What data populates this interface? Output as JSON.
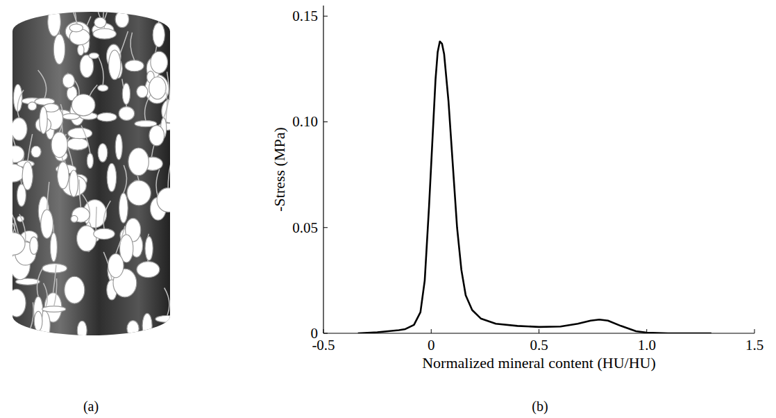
{
  "figure": {
    "panel_labels": [
      "(a)",
      "(b)"
    ]
  },
  "chart_data": {
    "type": "line",
    "xlabel": "Normalized mineral content (HU/HU)",
    "ylabel": "-Stress (MPa)",
    "x": [
      -0.34,
      -0.25,
      -0.2,
      -0.15,
      -0.12,
      -0.08,
      -0.05,
      -0.03,
      -0.01,
      0.01,
      0.02,
      0.03,
      0.04,
      0.05,
      0.06,
      0.08,
      0.1,
      0.12,
      0.14,
      0.16,
      0.19,
      0.23,
      0.3,
      0.4,
      0.5,
      0.6,
      0.68,
      0.74,
      0.78,
      0.82,
      0.88,
      0.95,
      1.0,
      1.1,
      1.2,
      1.3
    ],
    "values": [
      0,
      0.0005,
      0.001,
      0.0015,
      0.002,
      0.004,
      0.01,
      0.025,
      0.06,
      0.1,
      0.12,
      0.133,
      0.138,
      0.137,
      0.132,
      0.11,
      0.08,
      0.05,
      0.03,
      0.018,
      0.011,
      0.007,
      0.0045,
      0.0035,
      0.003,
      0.0032,
      0.0045,
      0.006,
      0.0065,
      0.006,
      0.0035,
      0.001,
      0.0003,
      0,
      0,
      0
    ],
    "color": "#000000",
    "xlim": [
      -0.5,
      1.5
    ],
    "xticks": [
      -0.5,
      0,
      0.5,
      {
        "value": 1,
        "label": "1.0"
      },
      1.5
    ],
    "ylim": [
      0,
      0.155
    ],
    "yticks": [
      0,
      0.05,
      {
        "value": 0.1,
        "label": "0.10"
      },
      0.15
    ],
    "grid": false
  }
}
